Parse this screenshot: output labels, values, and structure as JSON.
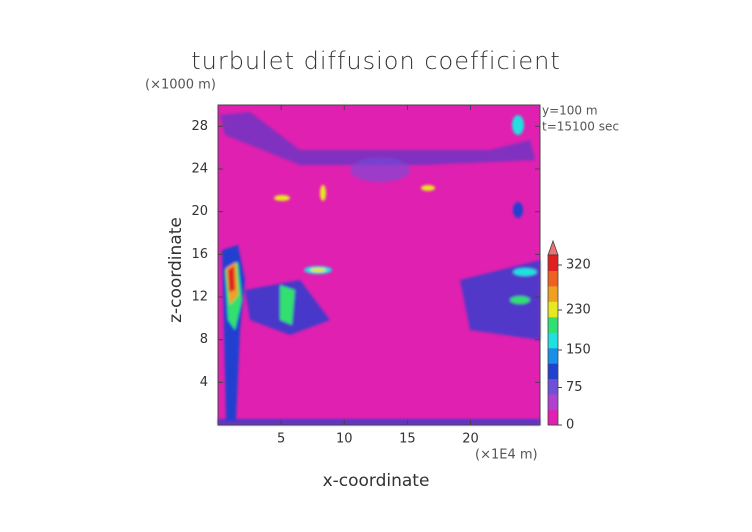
{
  "chart_data": {
    "type": "heatmap",
    "title": "turbulet diffusion coefficient",
    "x_label": "x-coordinate",
    "y_label": "z-coordinate",
    "x_unit": "(×1E4 m)",
    "y_unit": "(×1000 m)",
    "annotations": [
      "y=100 m",
      "t=15100 sec"
    ],
    "xlim": [
      0,
      25.5
    ],
    "xticks": [
      5,
      10,
      15,
      20
    ],
    "ylim": [
      0,
      30
    ],
    "yticks": [
      4,
      8,
      12,
      16,
      20,
      24,
      28
    ],
    "colorbar": {
      "clim": [
        0,
        340
      ],
      "ticks": [
        0,
        75,
        150,
        230,
        320
      ],
      "colors": [
        "#e020b0",
        "#b040d0",
        "#7050d8",
        "#2040d0",
        "#1890e8",
        "#20e0e0",
        "#30e070",
        "#e8e820",
        "#f0a020",
        "#f06020",
        "#e02020"
      ]
    }
  }
}
